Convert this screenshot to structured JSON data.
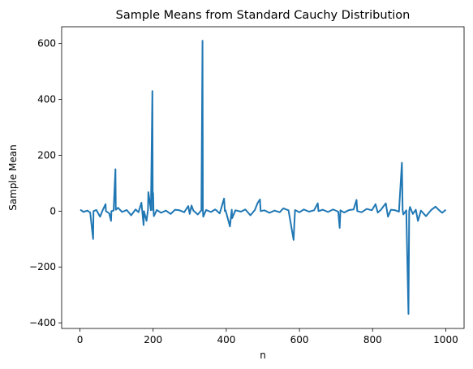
{
  "chart_data": {
    "type": "line",
    "title": "Sample Means from Standard Cauchy Distribution",
    "xlabel": "n",
    "ylabel": "Sample Mean",
    "xlim": [
      -50,
      1050
    ],
    "ylim": [
      -420,
      660
    ],
    "xticks": [
      0,
      200,
      400,
      600,
      800,
      1000
    ],
    "yticks": [
      -400,
      -200,
      0,
      200,
      400,
      600
    ],
    "grid": false,
    "legend": false,
    "color": "#1f77b4",
    "series": [
      {
        "x": [
          1,
          10,
          20,
          28,
          36,
          37,
          45,
          55,
          62,
          70,
          71,
          80,
          85,
          86,
          92,
          97,
          98,
          104,
          115,
          128,
          140,
          152,
          160,
          168,
          174,
          175,
          182,
          186,
          187,
          194,
          198,
          199,
          200,
          201,
          202,
          210,
          222,
          235,
          248,
          260,
          272,
          285,
          296,
          300,
          305,
          310,
          322,
          332,
          335,
          336,
          337,
          345,
          358,
          370,
          382,
          394,
          396,
          398,
          410,
          415,
          416,
          425,
          440,
          452,
          466,
          478,
          486,
          492,
          494,
          504,
          518,
          532,
          546,
          556,
          570,
          584,
          586,
          588,
          600,
          612,
          626,
          640,
          650,
          652,
          664,
          678,
          692,
          706,
          710,
          712,
          722,
          736,
          748,
          756,
          758,
          770,
          784,
          798,
          808,
          814,
          822,
          836,
          842,
          850,
          862,
          872,
          880,
          882,
          884,
          892,
          898,
          900,
          902,
          910,
          918,
          924,
          932,
          946,
          960,
          972,
          982,
          990,
          1000
        ],
        "y": [
          5,
          -3,
          2,
          -5,
          -100,
          0,
          4,
          -20,
          3,
          25,
          0,
          -8,
          -35,
          0,
          2,
          150,
          5,
          12,
          -3,
          4,
          -15,
          6,
          -4,
          30,
          -50,
          0,
          -35,
          5,
          68,
          3,
          430,
          4,
          65,
          5,
          -18,
          4,
          -6,
          2,
          -10,
          5,
          3,
          -4,
          18,
          -10,
          20,
          2,
          -12,
          3,
          610,
          5,
          -20,
          4,
          -3,
          6,
          -8,
          45,
          0,
          3,
          -55,
          5,
          -25,
          3,
          -2,
          6,
          -15,
          4,
          30,
          42,
          0,
          3,
          -6,
          2,
          -4,
          10,
          3,
          -103,
          -45,
          4,
          -4,
          6,
          -2,
          3,
          28,
          0,
          5,
          -3,
          6,
          -2,
          -60,
          3,
          -5,
          4,
          6,
          40,
          0,
          -4,
          8,
          3,
          25,
          -5,
          4,
          28,
          -20,
          5,
          3,
          -2,
          173,
          5,
          -12,
          3,
          -368,
          0,
          15,
          -10,
          5,
          -35,
          2,
          -18,
          4,
          16,
          3,
          -6,
          5
        ]
      }
    ]
  }
}
